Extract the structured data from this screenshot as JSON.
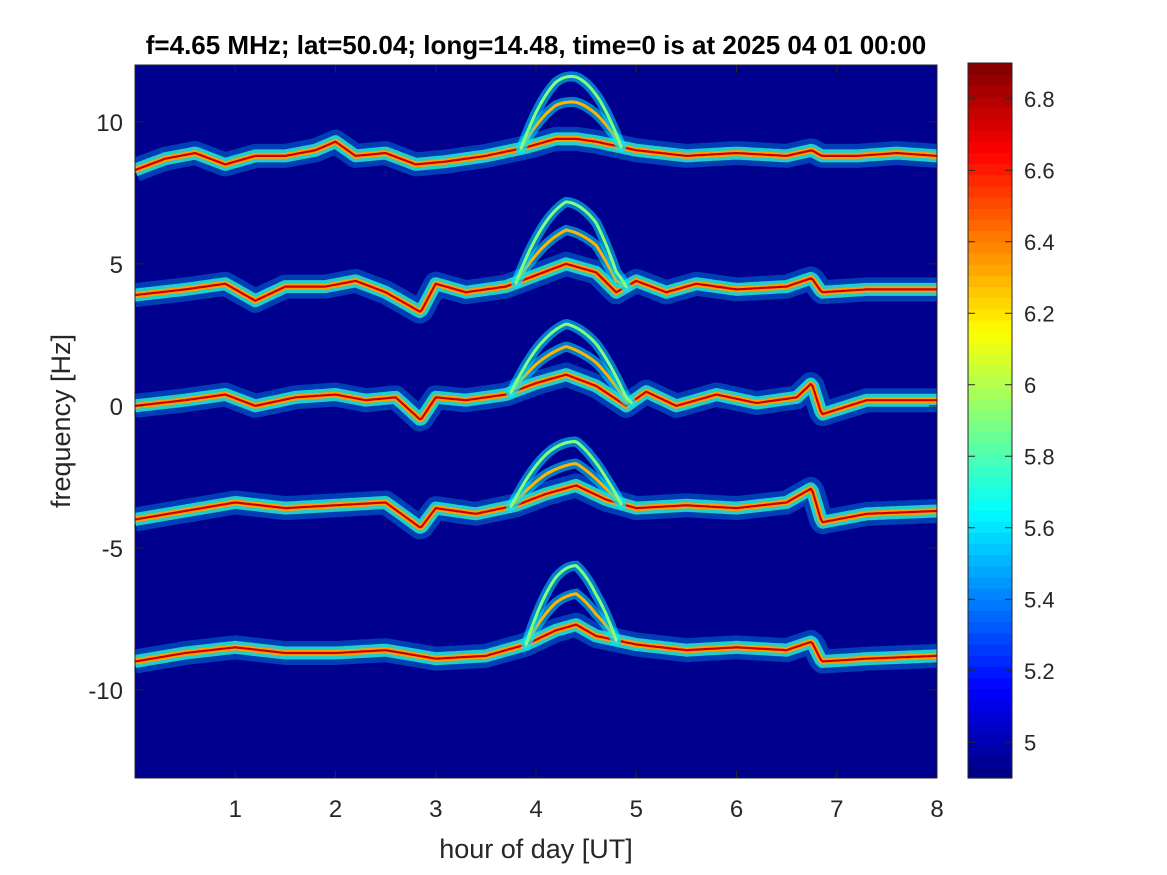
{
  "chart_data": {
    "type": "heatmap",
    "title": "f=4.65 MHz;  lat=50.04; long=14.48, time=0 is at 2025 04 01 00:00",
    "xlabel": "hour of day [UT]",
    "ylabel": "frequency [Hz]",
    "xlim": [
      0,
      8
    ],
    "ylim": [
      -13.1,
      12.0
    ],
    "xticks": [
      1,
      2,
      3,
      4,
      5,
      6,
      7,
      8
    ],
    "xtick_labels": [
      "1",
      "2",
      "3",
      "4",
      "5",
      "6",
      "7",
      "8"
    ],
    "yticks": [
      10,
      5,
      0,
      -5,
      -10
    ],
    "ytick_labels": [
      "10",
      "5",
      "0",
      "-5",
      "-10"
    ],
    "colormap": "jet",
    "background_color": "#00008f",
    "colorbar": {
      "range": [
        4.9,
        6.9
      ],
      "ticks": [
        6.8,
        6.6,
        6.4,
        6.2,
        6,
        5.8,
        5.6,
        5.4,
        5.2,
        5
      ],
      "tick_labels": [
        "6.8",
        "6.6",
        "6.4",
        "6.2",
        "6",
        "5.8",
        "5.6",
        "5.4",
        "5.2",
        "5"
      ]
    },
    "traces": [
      {
        "base_frequency_hz": 8.5,
        "hours": [
          0,
          0.3,
          0.6,
          0.9,
          1.2,
          1.5,
          1.8,
          2.0,
          2.2,
          2.5,
          2.8,
          3.1,
          3.5,
          3.9,
          4.2,
          4.4,
          4.6,
          5.0,
          5.5,
          6.0,
          6.5,
          6.75,
          6.85,
          7.2,
          7.6,
          8.0
        ],
        "frequency": [
          8.3,
          8.7,
          8.9,
          8.5,
          8.8,
          8.8,
          9.0,
          9.3,
          8.8,
          8.9,
          8.5,
          8.6,
          8.8,
          9.1,
          9.4,
          9.4,
          9.3,
          9.0,
          8.8,
          8.9,
          8.8,
          9.0,
          8.8,
          8.8,
          8.9,
          8.8
        ],
        "echo_arcs": [
          {
            "peak_hour": 4.35,
            "width_h": 0.5,
            "rise_hz": [
              1.3,
              2.2
            ]
          }
        ]
      },
      {
        "base_frequency_hz": 4,
        "hours": [
          0,
          0.5,
          0.9,
          1.2,
          1.5,
          1.9,
          2.2,
          2.5,
          2.85,
          3.0,
          3.3,
          3.7,
          4.0,
          4.3,
          4.6,
          4.8,
          5.0,
          5.3,
          5.6,
          6.0,
          6.5,
          6.75,
          6.85,
          7.3,
          8.0
        ],
        "frequency": [
          3.9,
          4.1,
          4.3,
          3.7,
          4.2,
          4.2,
          4.4,
          4.0,
          3.3,
          4.3,
          4.0,
          4.2,
          4.6,
          5.0,
          4.7,
          4.0,
          4.4,
          4.0,
          4.3,
          4.1,
          4.2,
          4.5,
          4.0,
          4.1,
          4.1
        ],
        "echo_arcs": [
          {
            "peak_hour": 4.35,
            "width_h": 0.55,
            "rise_hz": [
              1.2,
              2.2
            ]
          }
        ]
      },
      {
        "base_frequency_hz": 0,
        "hours": [
          0,
          0.5,
          0.9,
          1.2,
          1.6,
          2.0,
          2.3,
          2.6,
          2.85,
          3.0,
          3.3,
          3.7,
          4.0,
          4.3,
          4.6,
          4.9,
          5.1,
          5.4,
          5.8,
          6.2,
          6.6,
          6.75,
          6.85,
          7.3,
          8.0
        ],
        "frequency": [
          0.0,
          0.2,
          0.4,
          0.0,
          0.3,
          0.4,
          0.2,
          0.3,
          -0.5,
          0.3,
          0.2,
          0.4,
          0.8,
          1.1,
          0.7,
          0.0,
          0.5,
          0.0,
          0.4,
          0.1,
          0.3,
          0.8,
          -0.3,
          0.2,
          0.2
        ],
        "echo_arcs": [
          {
            "peak_hour": 4.35,
            "width_h": 0.6,
            "rise_hz": [
              1.0,
              1.8
            ]
          }
        ]
      },
      {
        "base_frequency_hz": -4,
        "hours": [
          0,
          0.5,
          1.0,
          1.5,
          2.0,
          2.5,
          2.85,
          3.0,
          3.4,
          3.8,
          4.1,
          4.4,
          4.7,
          5.0,
          5.5,
          6.0,
          6.5,
          6.75,
          6.85,
          7.3,
          8.0
        ],
        "frequency": [
          -4.0,
          -3.7,
          -3.4,
          -3.6,
          -3.5,
          -3.4,
          -4.3,
          -3.6,
          -3.8,
          -3.5,
          -3.1,
          -2.8,
          -3.3,
          -3.6,
          -3.5,
          -3.6,
          -3.4,
          -2.9,
          -4.1,
          -3.8,
          -3.7
        ],
        "echo_arcs": [
          {
            "peak_hour": 4.3,
            "width_h": 0.55,
            "rise_hz": [
              0.8,
              1.6
            ]
          }
        ]
      },
      {
        "base_frequency_hz": -9,
        "hours": [
          0,
          0.5,
          1.0,
          1.5,
          2.0,
          2.5,
          3.0,
          3.5,
          3.9,
          4.2,
          4.4,
          4.6,
          5.0,
          5.5,
          6.0,
          6.5,
          6.75,
          6.85,
          7.3,
          8.0
        ],
        "frequency": [
          -9.0,
          -8.7,
          -8.5,
          -8.7,
          -8.7,
          -8.6,
          -8.9,
          -8.8,
          -8.4,
          -7.9,
          -7.7,
          -8.1,
          -8.4,
          -8.6,
          -8.5,
          -8.6,
          -8.3,
          -9.0,
          -8.9,
          -8.8
        ],
        "echo_arcs": [
          {
            "peak_hour": 4.35,
            "width_h": 0.45,
            "rise_hz": [
              1.1,
              2.1
            ]
          }
        ]
      }
    ]
  }
}
